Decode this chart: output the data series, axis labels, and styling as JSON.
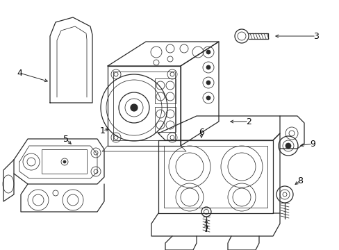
{
  "bg_color": "#ffffff",
  "line_color": "#2a2a2a",
  "label_color": "#000000",
  "figsize": [
    4.89,
    3.6
  ],
  "dpi": 100,
  "lw_main": 0.9,
  "lw_thin": 0.55,
  "label_fontsize": 9
}
